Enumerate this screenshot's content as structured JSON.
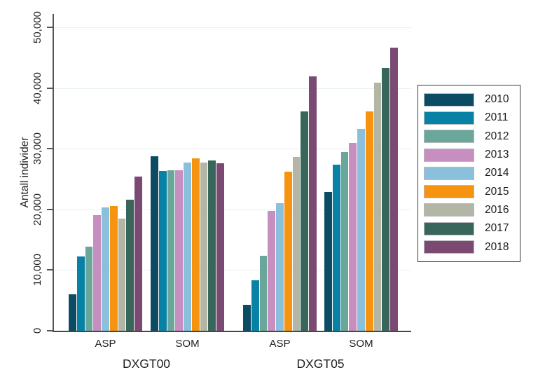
{
  "chart_data": {
    "type": "bar",
    "title": "",
    "ylabel": "Antall individer",
    "xlabel": "",
    "ylim": [
      0,
      50000
    ],
    "yticks": [
      0,
      10000,
      20000,
      30000,
      40000,
      50000
    ],
    "ytick_labels": [
      "0",
      "10,000",
      "20,000",
      "30,000",
      "40,000",
      "50,000"
    ],
    "grid": true,
    "legend_position": "right-outside",
    "groups": [
      {
        "label": "DXGT00",
        "subgroups": [
          "ASP",
          "SOM"
        ]
      },
      {
        "label": "DXGT05",
        "subgroups": [
          "ASP",
          "SOM"
        ]
      }
    ],
    "categories": [
      "DXGT00 ASP",
      "DXGT00 SOM",
      "DXGT05 ASP",
      "DXGT05 SOM"
    ],
    "series": [
      {
        "name": "2010",
        "color": "#0B4C64",
        "values": [
          6000,
          28700,
          4300,
          22900
        ]
      },
      {
        "name": "2011",
        "color": "#0781A4",
        "values": [
          12200,
          26300,
          8300,
          27400
        ]
      },
      {
        "name": "2012",
        "color": "#6AA69A",
        "values": [
          13900,
          26400,
          12400,
          29500
        ]
      },
      {
        "name": "2013",
        "color": "#C78FC0",
        "values": [
          19100,
          26400,
          19800,
          31000
        ]
      },
      {
        "name": "2014",
        "color": "#8AC0DC",
        "values": [
          20300,
          27700,
          21000,
          33200
        ]
      },
      {
        "name": "2015",
        "color": "#F6930F",
        "values": [
          20600,
          28400,
          26200,
          36200
        ]
      },
      {
        "name": "2016",
        "color": "#B3B6A5",
        "values": [
          18500,
          27700,
          28600,
          40900
        ]
      },
      {
        "name": "2017",
        "color": "#39665B",
        "values": [
          21600,
          28100,
          36200,
          43300
        ]
      },
      {
        "name": "2018",
        "color": "#7B4A73",
        "values": [
          25400,
          27600,
          41900,
          46700
        ]
      }
    ],
    "axis_color": "#545454",
    "grid_color": "#E7F0F4"
  }
}
